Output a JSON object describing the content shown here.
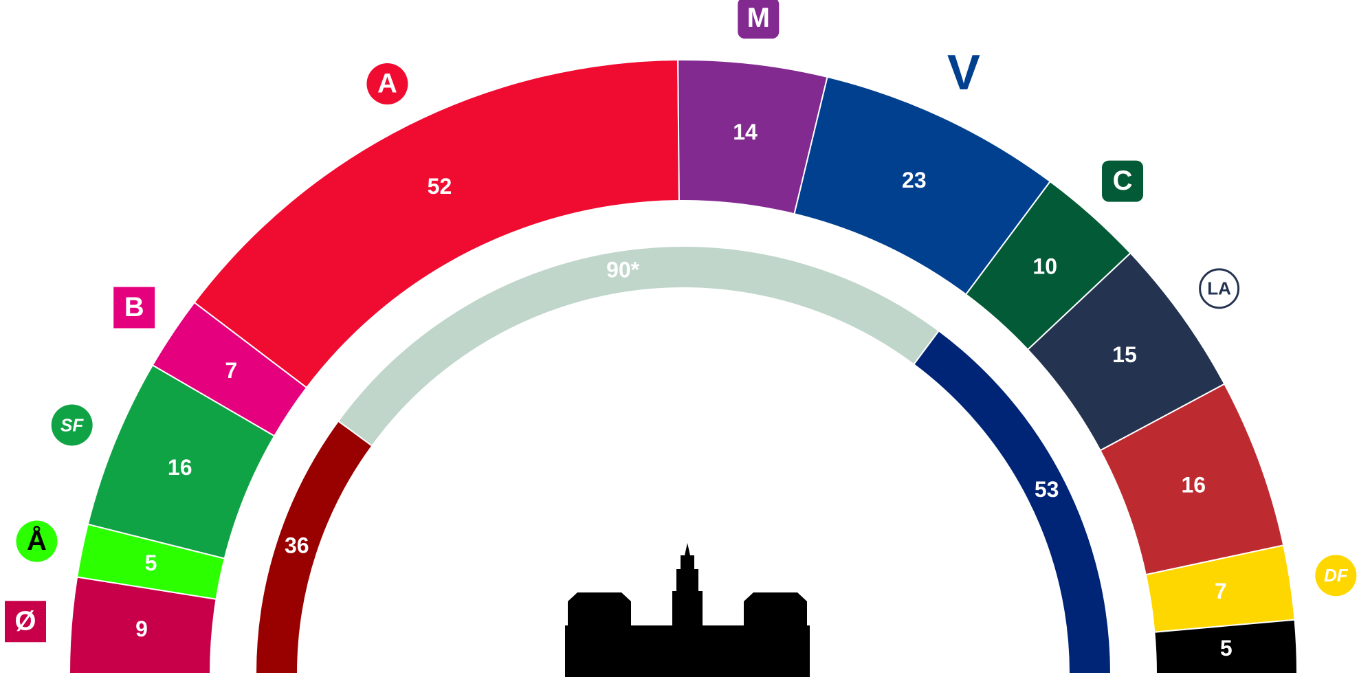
{
  "chart_data": {
    "type": "parliament",
    "categories": [
      "Ø",
      "Å",
      "SF",
      "B",
      "A",
      "M",
      "V",
      "C",
      "LA",
      null,
      "DF",
      null
    ],
    "values": [
      9,
      5,
      16,
      7,
      52,
      14,
      23,
      10,
      15,
      16,
      7,
      5
    ],
    "colors": [
      "#c8004a",
      "#2bff00",
      "#10a346",
      "#e5007d",
      "#f00b31",
      "#832a91",
      "#00408f",
      "#035a36",
      "#243350",
      "#bd2a30",
      "#ffd700",
      "#000000"
    ],
    "blocs": {
      "values": [
        36,
        90,
        53
      ],
      "value_labels": [
        "36",
        "90*",
        "53"
      ],
      "colors": [
        "#990000",
        "#c0d6cb",
        "#002476"
      ]
    }
  }
}
